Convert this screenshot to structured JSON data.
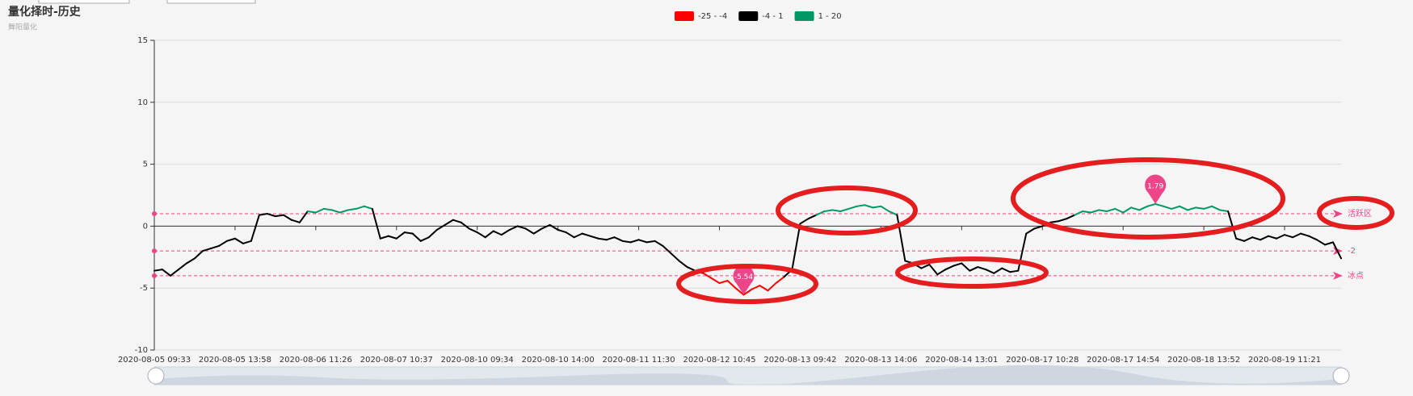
{
  "chart_data": {
    "type": "line",
    "title": "量化择时-历史",
    "subtitle": "舞阳量化",
    "categories": [
      "2020-08-05 09:33",
      null,
      null,
      null,
      null,
      null,
      null,
      null,
      null,
      null,
      "2020-08-05 13:58",
      null,
      null,
      null,
      null,
      null,
      null,
      null,
      null,
      null,
      "2020-08-06 11:26",
      null,
      null,
      null,
      null,
      null,
      null,
      null,
      null,
      null,
      "2020-08-07 10:37",
      null,
      null,
      null,
      null,
      null,
      null,
      null,
      null,
      null,
      "2020-08-10 09:34",
      null,
      null,
      null,
      null,
      null,
      null,
      null,
      null,
      null,
      "2020-08-10 14:00",
      null,
      null,
      null,
      null,
      null,
      null,
      null,
      null,
      null,
      "2020-08-11 11:30",
      null,
      null,
      null,
      null,
      null,
      null,
      null,
      null,
      null,
      "2020-08-12 10:45",
      null,
      null,
      null,
      null,
      null,
      null,
      null,
      null,
      null,
      "2020-08-13 09:42",
      null,
      null,
      null,
      null,
      null,
      null,
      null,
      null,
      null,
      "2020-08-13 14:06",
      null,
      null,
      null,
      null,
      null,
      null,
      null,
      null,
      null,
      "2020-08-14 13:01",
      null,
      null,
      null,
      null,
      null,
      null,
      null,
      null,
      null,
      "2020-08-17 10:28",
      null,
      null,
      null,
      null,
      null,
      null,
      null,
      null,
      null,
      "2020-08-17 14:54",
      null,
      null,
      null,
      null,
      null,
      null,
      null,
      null,
      null,
      "2020-08-18 13:52",
      null,
      null,
      null,
      null,
      null,
      null,
      null,
      null,
      null,
      "2020-08-19 11:21",
      null,
      null,
      null,
      null,
      null,
      null,
      null
    ],
    "series": [
      {
        "values": [
          -3.6,
          -3.5,
          -4.0,
          -3.5,
          -3.0,
          -2.6,
          -2.0,
          -1.8,
          -1.6,
          -1.2,
          -1.0,
          -1.4,
          -1.2,
          0.9,
          1.0,
          0.8,
          0.9,
          0.5,
          0.3,
          1.2,
          1.1,
          1.4,
          1.3,
          1.1,
          1.3,
          1.4,
          1.6,
          1.4,
          -1.0,
          -0.8,
          -1.0,
          -0.5,
          -0.6,
          -1.2,
          -0.9,
          -0.3,
          0.1,
          0.5,
          0.3,
          -0.2,
          -0.5,
          -0.9,
          -0.4,
          -0.7,
          -0.3,
          0.0,
          -0.2,
          -0.6,
          -0.2,
          0.1,
          -0.3,
          -0.5,
          -0.9,
          -0.6,
          -0.8,
          -1.0,
          -1.1,
          -0.9,
          -1.2,
          -1.3,
          -1.1,
          -1.3,
          -1.2,
          -1.6,
          -2.2,
          -2.8,
          -3.3,
          -3.6,
          -3.8,
          -4.2,
          -4.6,
          -4.4,
          -5.0,
          -5.54,
          -5.1,
          -4.8,
          -5.2,
          -4.6,
          -4.1,
          -3.5,
          0.2,
          0.6,
          0.9,
          1.2,
          1.3,
          1.2,
          1.4,
          1.6,
          1.7,
          1.5,
          1.6,
          1.2,
          0.9,
          -2.8,
          -3.0,
          -3.4,
          -3.1,
          -3.9,
          -3.5,
          -3.2,
          -3.0,
          -3.6,
          -3.3,
          -3.5,
          -3.8,
          -3.4,
          -3.7,
          -3.6,
          -0.6,
          -0.2,
          0.0,
          0.3,
          0.4,
          0.6,
          0.9,
          1.2,
          1.1,
          1.3,
          1.2,
          1.4,
          1.1,
          1.5,
          1.3,
          1.6,
          1.79,
          1.6,
          1.4,
          1.6,
          1.3,
          1.5,
          1.4,
          1.6,
          1.3,
          1.2,
          -1.0,
          -1.2,
          -0.9,
          -1.1,
          -0.8,
          -1.0,
          -0.7,
          -0.9,
          -0.6,
          -0.8,
          -1.1,
          -1.5,
          -1.3,
          -2.6
        ]
      }
    ],
    "pieces": [
      {
        "label": "-25 - -4",
        "min": -25,
        "max": -4,
        "color": "#ff0000"
      },
      {
        "label": "-4 - 1",
        "min": -4,
        "max": 1,
        "color": "#000000"
      },
      {
        "label": "1 - 20",
        "min": 1,
        "max": 20,
        "color": "#009966"
      }
    ],
    "mark_lines": [
      {
        "value": 1,
        "label": "活跃区"
      },
      {
        "value": -2,
        "label": "-2"
      },
      {
        "value": -4,
        "label": "冰点"
      }
    ],
    "mark_line_color": "#ee4488",
    "mark_points": [
      {
        "value": 1.79
      },
      {
        "value": -5.54
      }
    ],
    "ylim": [
      -10,
      15
    ],
    "yticks": [
      -10,
      -5,
      0,
      5,
      10,
      15
    ],
    "grid": true
  }
}
